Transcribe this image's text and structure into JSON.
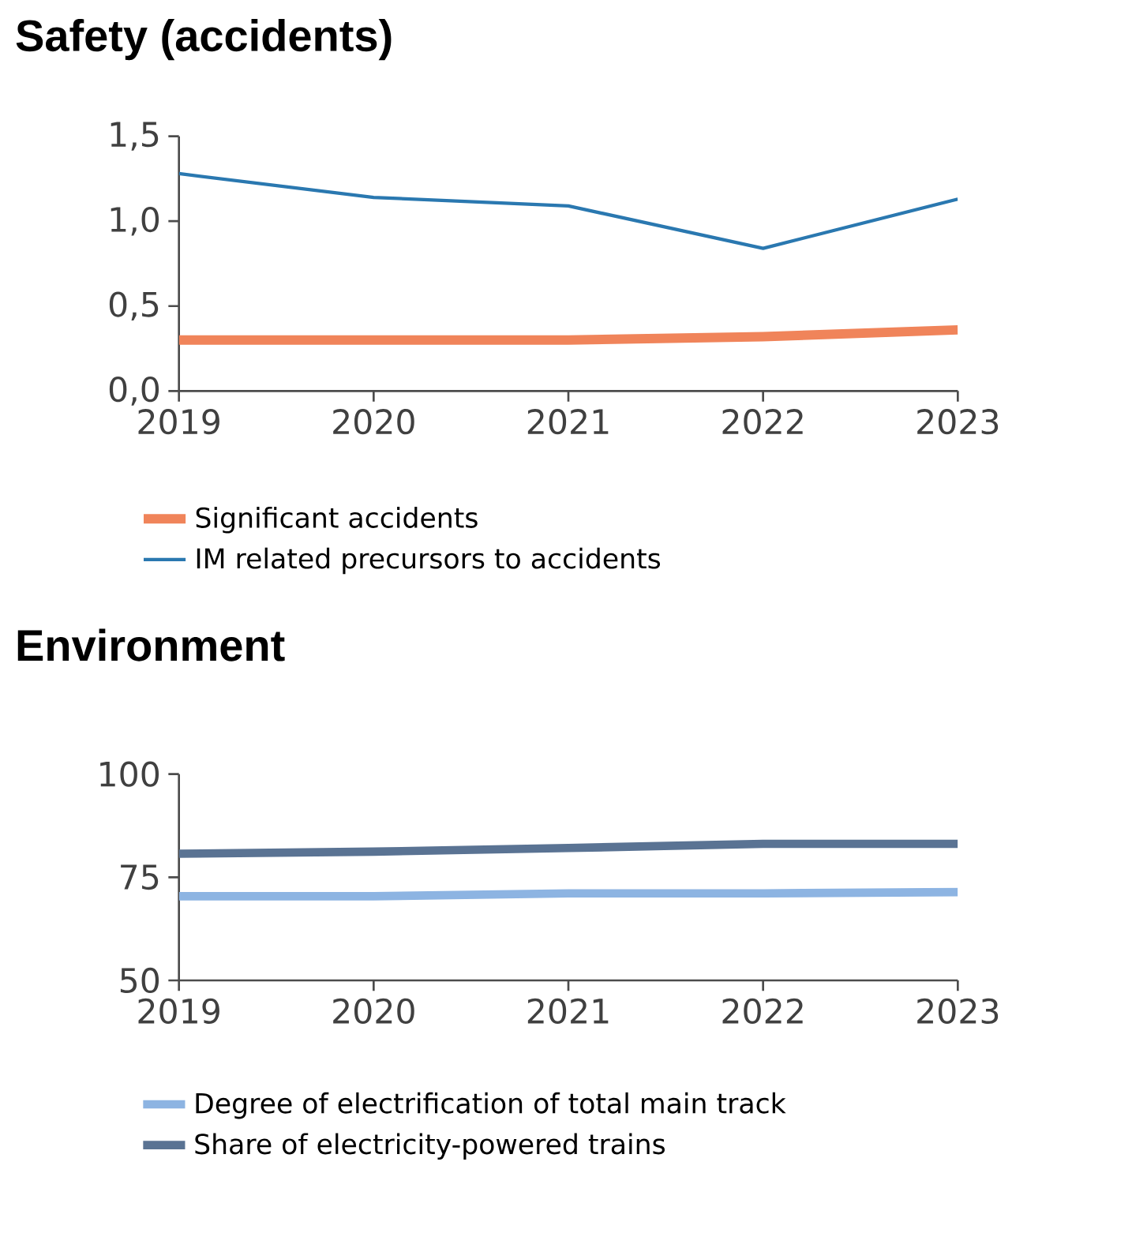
{
  "chart_data": [
    {
      "type": "line",
      "title": "Safety (accidents)",
      "categories": [
        "2019",
        "2020",
        "2021",
        "2022",
        "2023"
      ],
      "series": [
        {
          "name": "Significant accidents",
          "color": "#f0845a",
          "values": [
            0.3,
            0.3,
            0.3,
            0.32,
            0.36
          ]
        },
        {
          "name": "IM related precursors to accidents",
          "color": "#2a78b0",
          "values": [
            1.28,
            1.14,
            1.09,
            0.84,
            1.13
          ]
        }
      ],
      "ylim": [
        0,
        1.5
      ],
      "yticks": [
        {
          "value": 0,
          "label": "0,0"
        },
        {
          "value": 0.5,
          "label": "0,5"
        },
        {
          "value": 1.0,
          "label": "1,0"
        },
        {
          "value": 1.5,
          "label": "1,5"
        }
      ],
      "legend": "bottom"
    },
    {
      "type": "line",
      "title": "Environment",
      "categories": [
        "2019",
        "2020",
        "2021",
        "2022",
        "2023"
      ],
      "series": [
        {
          "name": "Degree of electrification of total main track",
          "color": "#8db4e2",
          "values": [
            70.4,
            70.4,
            71.1,
            71.1,
            71.4
          ]
        },
        {
          "name": "Share of electricity-powered trains",
          "color": "#5a7393",
          "values": [
            80.7,
            81.2,
            82.1,
            83.1,
            83.1
          ]
        }
      ],
      "ylim": [
        50,
        100
      ],
      "yticks": [
        50,
        75,
        100
      ],
      "legend": "bottom"
    }
  ]
}
